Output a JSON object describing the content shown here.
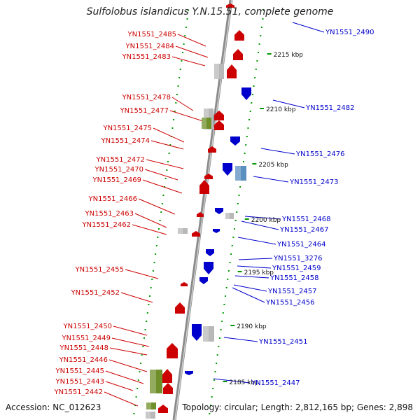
{
  "title": "Sulfolobus islandicus Y.N.15.51, complete genome",
  "accession": "Accession: NC_012623",
  "summary": "Topology: circular; Length: 2,812,165 bp; Genes: 2,898",
  "colors": {
    "forward": "#cc0000",
    "reverse": "#0000cc",
    "tick": "#009900",
    "backbone": "#888888"
  },
  "ticks": [
    "2215 kbp",
    "2210 kbp",
    "2205 kbp",
    "2200 kbp",
    "2195 kbp",
    "2190 kbp",
    "2185 kbp"
  ],
  "left_labels": [
    "YN1551_2485",
    "YN1551_2484",
    "YN1551_2483",
    "YN1551_2478",
    "YN1551_2477",
    "YN1551_2475",
    "YN1551_2474",
    "YN1551_2472",
    "YN1551_2470",
    "YN1551_2469",
    "YN1551_2466",
    "YN1551_2463",
    "YN1551_2462",
    "YN1551_2455",
    "YN1551_2452",
    "YN1551_2450",
    "YN1551_2449",
    "YN1551_2448",
    "YN1551_2446",
    "YN1551_2445",
    "YN1551_2443",
    "YN1551_2442"
  ],
  "right_labels": [
    "YN1551_2490",
    "YN1551_2482",
    "YN1551_2476",
    "YN1551_2473",
    "YN1551_2468",
    "YN1551_2467",
    "YN1551_2464",
    "YN1551_3276",
    "YN1551_2459",
    "YN1551_2458",
    "YN1551_2457",
    "YN1551_2456",
    "YN1551_2451",
    "YN1551_2447"
  ]
}
